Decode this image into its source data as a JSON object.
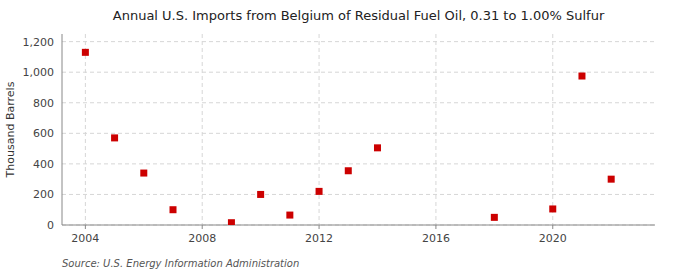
{
  "chart_data": {
    "type": "scatter",
    "title": "Annual U.S. Imports from Belgium of Residual Fuel Oil, 0.31 to 1.00% Sulfur",
    "ylabel": "Thousand Barrels",
    "source": "Source: U.S. Energy Information Administration",
    "x": [
      2004,
      2005,
      2006,
      2007,
      2009,
      2010,
      2011,
      2012,
      2013,
      2014,
      2018,
      2020,
      2021,
      2022
    ],
    "values": [
      1130,
      570,
      340,
      100,
      15,
      200,
      65,
      220,
      355,
      505,
      50,
      105,
      975,
      300
    ],
    "color": "#cc0000",
    "marker": "square",
    "xlim": [
      2003.2,
      2023.5
    ],
    "ylim": [
      0,
      1250
    ],
    "xticks": [
      2004,
      2008,
      2012,
      2016,
      2020
    ],
    "yticks": [
      0,
      200,
      400,
      600,
      800,
      {
        "value": 1000,
        "label": "1,000"
      },
      {
        "value": 1200,
        "label": "1,200"
      }
    ],
    "grid": true
  }
}
